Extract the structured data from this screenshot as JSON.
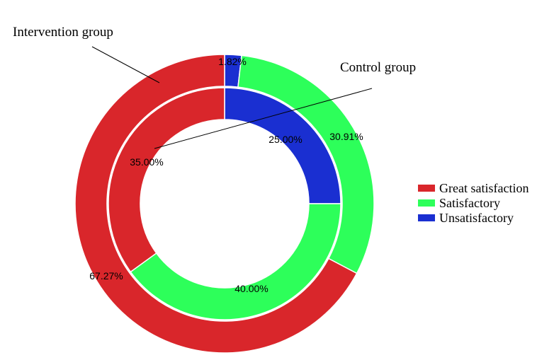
{
  "chart_data": {
    "type": "pie",
    "subtype": "nested-donut",
    "categories": [
      "Great satisfaction",
      "Satisfactory",
      "Unsatisfactory"
    ],
    "colors": [
      "#d9262b",
      "#2dff5a",
      "#1a2fd1"
    ],
    "series": [
      {
        "name": "Intervention group",
        "ring": "outer",
        "values": [
          67.27,
          30.91,
          1.82
        ],
        "labels": [
          "67.27%",
          "30.91%",
          "1.82%"
        ]
      },
      {
        "name": "Control group",
        "ring": "inner",
        "values": [
          35.0,
          40.0,
          25.0
        ],
        "labels": [
          "35.00%",
          "40.00%",
          "25.00%"
        ]
      }
    ],
    "annotations": [
      "Intervention group",
      "Control group"
    ],
    "legend_position": "right"
  }
}
